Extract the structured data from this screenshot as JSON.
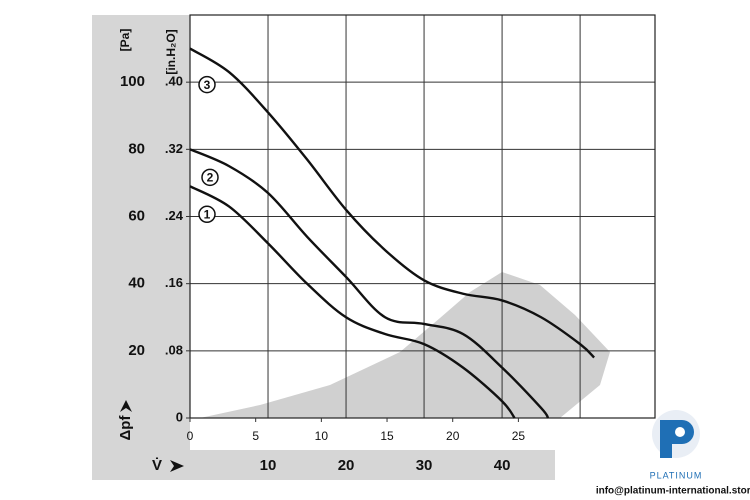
{
  "chart_data": {
    "type": "line",
    "y_unit_label": "[Pa]",
    "y2_unit_label": "[in.H₂O]",
    "y_axis_label": "Δpf",
    "x_axis_label": "V̇",
    "xlim": [
      0,
      59.6
    ],
    "xticks": [
      10,
      20,
      30,
      40
    ],
    "x2lim": [
      0,
      35.4
    ],
    "x2ticks": [
      0,
      5,
      10,
      15,
      20,
      25
    ],
    "ylim": [
      0,
      120
    ],
    "yticks": [
      20,
      40,
      60,
      80,
      100
    ],
    "y2lim": [
      0,
      0.48
    ],
    "y2ticks": [
      0,
      {
        "value": 0.08,
        "label": ".08"
      },
      {
        "value": 0.16,
        "label": ".16"
      },
      {
        "value": 0.24,
        "label": ".24"
      },
      {
        "value": 0.32,
        "label": ".32"
      },
      {
        "value": 0.4,
        "label": ".40"
      }
    ],
    "grid": true,
    "series": [
      {
        "name": "1",
        "color": "#111111",
        "x": [
          0,
          5,
          10,
          15,
          20,
          25,
          30,
          35,
          40,
          41.6
        ],
        "values": [
          69,
          63,
          52,
          40,
          30,
          25,
          22,
          15,
          5,
          0
        ]
      },
      {
        "name": "2",
        "color": "#111111",
        "x": [
          0,
          5,
          10,
          15,
          20,
          25,
          30,
          35,
          40,
          45,
          45.9
        ],
        "values": [
          80,
          75,
          67,
          54,
          42,
          30,
          28,
          25,
          15,
          3,
          0
        ]
      },
      {
        "name": "3",
        "color": "#111111",
        "x": [
          0,
          5,
          10,
          15,
          20,
          25,
          30,
          35,
          40,
          45,
          50,
          51.8
        ],
        "values": [
          110,
          103,
          91,
          77,
          62,
          50,
          41,
          37,
          35,
          30,
          22,
          18
        ]
      }
    ],
    "logo_text": "PLATINUM",
    "footer": "info@platinum-international.store"
  }
}
